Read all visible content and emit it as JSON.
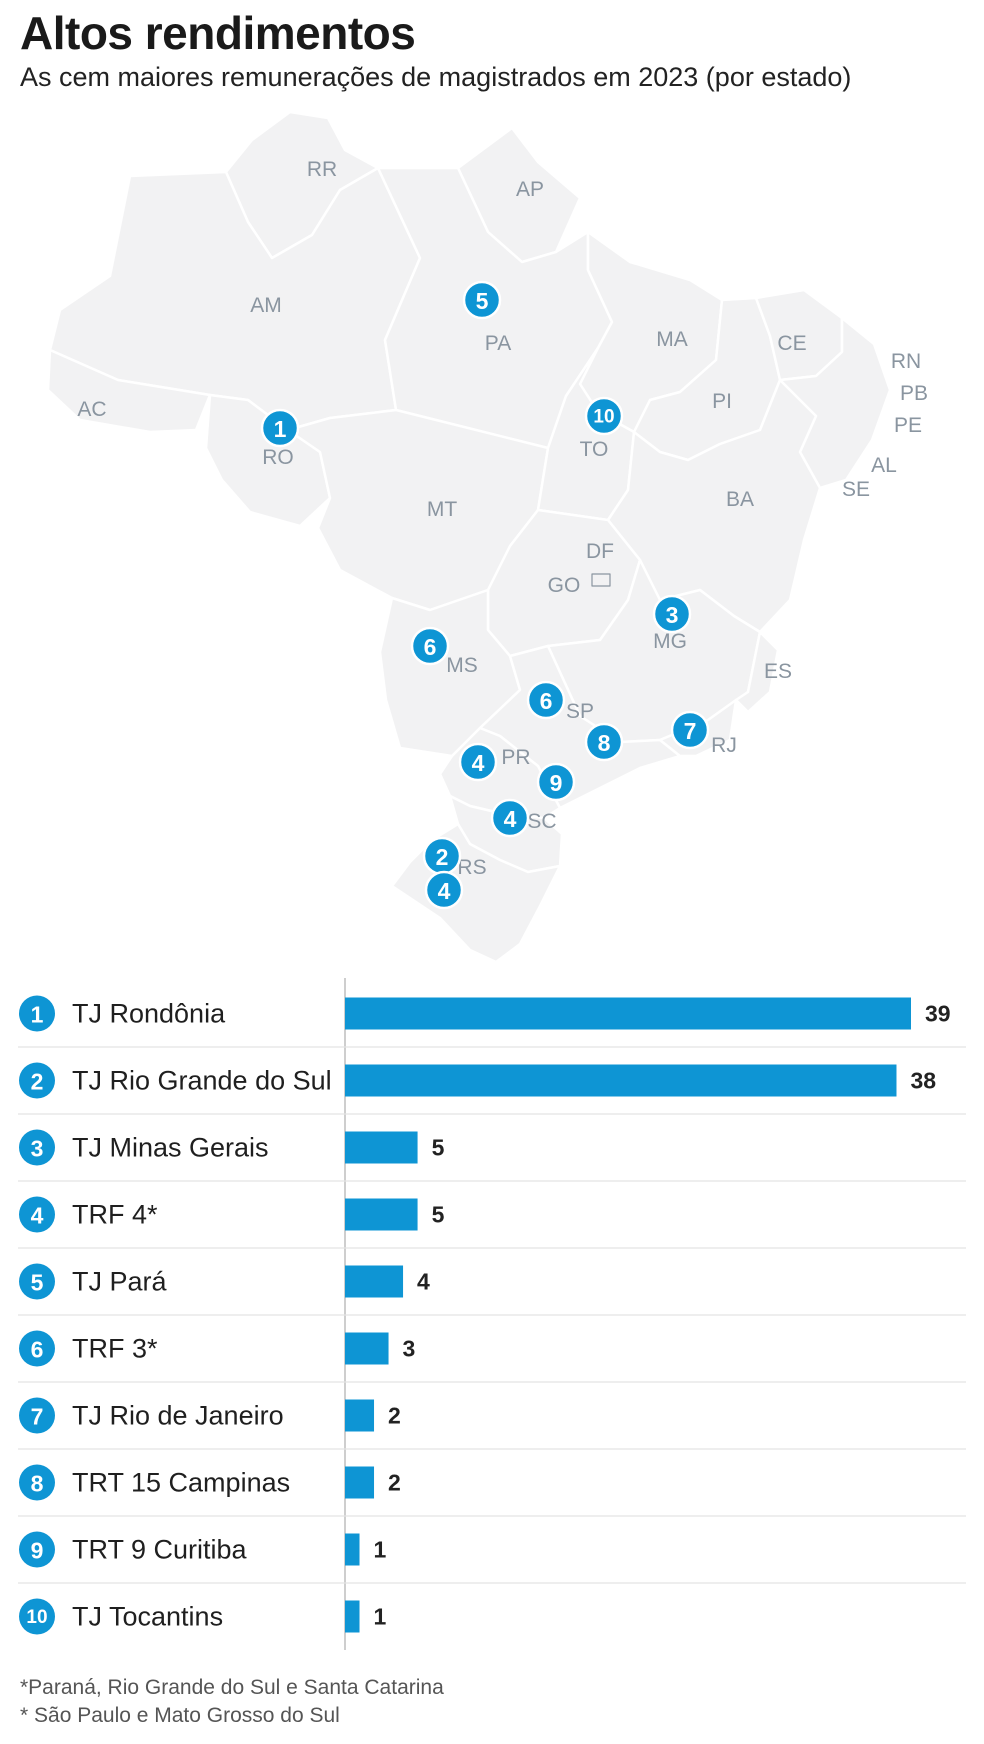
{
  "header": {
    "title": "Altos rendimentos",
    "subtitle": "As cem maiores remunerações de magistrados em 2023 (por estado)"
  },
  "colors": {
    "accent": "#0e95d4",
    "map_fill": "#f2f2f3",
    "map_stroke": "#ffffff",
    "label": "#8a95a0"
  },
  "map": {
    "state_labels": [
      "RR",
      "AP",
      "AM",
      "PA",
      "MA",
      "CE",
      "RN",
      "PB",
      "PE",
      "AL",
      "SE",
      "AC",
      "RO",
      "PI",
      "TO",
      "BA",
      "MT",
      "DF",
      "GO",
      "MG",
      "MS",
      "ES",
      "SP",
      "RJ",
      "PR",
      "SC",
      "RS"
    ],
    "markers": [
      {
        "rank": "1",
        "state": "RO"
      },
      {
        "rank": "2",
        "state": "RS"
      },
      {
        "rank": "3",
        "state": "MG"
      },
      {
        "rank": "4",
        "state": "PR"
      },
      {
        "rank": "4",
        "state": "SC"
      },
      {
        "rank": "4",
        "state": "RS"
      },
      {
        "rank": "5",
        "state": "PA"
      },
      {
        "rank": "6",
        "state": "MS"
      },
      {
        "rank": "6",
        "state": "SP"
      },
      {
        "rank": "7",
        "state": "RJ"
      },
      {
        "rank": "8",
        "state": "SP"
      },
      {
        "rank": "9",
        "state": "PR"
      },
      {
        "rank": "10",
        "state": "TO"
      }
    ]
  },
  "chart_data": {
    "type": "bar",
    "orientation": "horizontal",
    "ranks": [
      "1",
      "2",
      "3",
      "4",
      "5",
      "6",
      "7",
      "8",
      "9",
      "10"
    ],
    "categories": [
      "TJ Rondônia",
      "TJ Rio Grande do Sul",
      "TJ Minas Gerais",
      "TRF 4*",
      "TJ Pará",
      "TRF 3*",
      "TJ Rio de Janeiro",
      "TRT 15 Campinas",
      "TRT 9 Curitiba",
      "TJ Tocantins"
    ],
    "values": [
      39,
      38,
      5,
      5,
      4,
      3,
      2,
      2,
      1,
      1
    ],
    "xlim": [
      0,
      39
    ],
    "grid": false,
    "legend": "none"
  },
  "footnotes": [
    "*Paraná, Rio Grande do Sul e Santa Catarina",
    "* São Paulo e Mato Grosso do Sul"
  ]
}
